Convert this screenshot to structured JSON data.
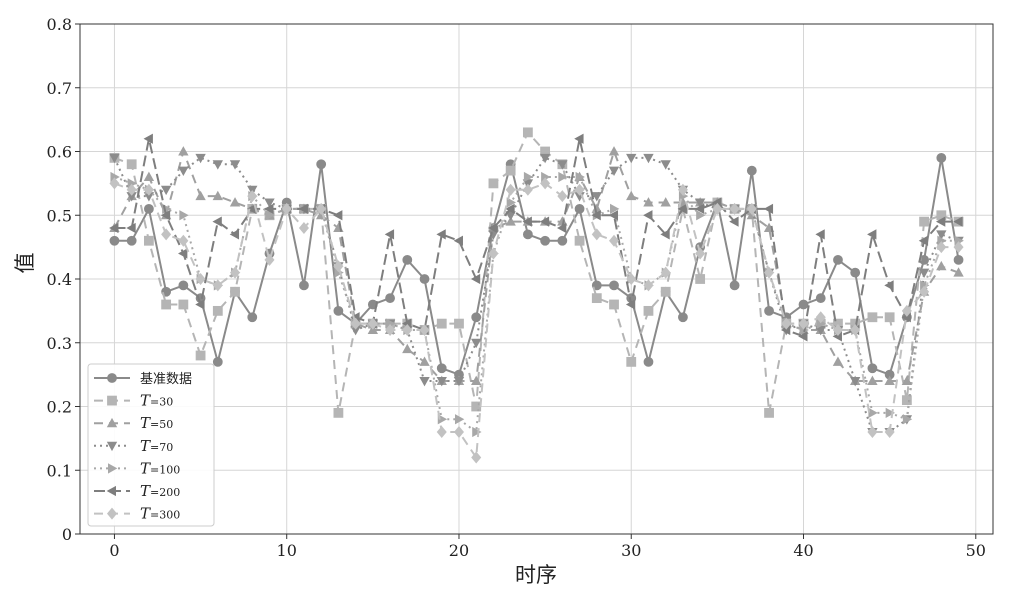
{
  "chart_data": {
    "type": "line",
    "xlabel": "时序",
    "ylabel": "值",
    "xlim": [
      -2,
      51
    ],
    "ylim": [
      0,
      0.8
    ],
    "xticks": [
      0,
      10,
      20,
      30,
      40,
      50
    ],
    "yticks": [
      0,
      0.1,
      0.2,
      0.3,
      0.4,
      0.5,
      0.6,
      0.7,
      0.8
    ],
    "ytick_labels": [
      "0",
      "0.1",
      "0.2",
      "0.3",
      "0.4",
      "0.5",
      "0.6",
      "0.7",
      "0.8"
    ],
    "grid": true,
    "legend_position": "bottom-left",
    "x": [
      0,
      1,
      2,
      3,
      4,
      5,
      6,
      7,
      8,
      9,
      10,
      11,
      12,
      13,
      14,
      15,
      16,
      17,
      18,
      19,
      20,
      21,
      22,
      23,
      24,
      25,
      26,
      27,
      28,
      29,
      30,
      31,
      32,
      33,
      34,
      35,
      36,
      37,
      38,
      39,
      40,
      41,
      42,
      43,
      44,
      45,
      46,
      47,
      48,
      49
    ],
    "series": [
      {
        "name": "基准数据",
        "color": "#8a8a8a",
        "dash": "solid",
        "marker": "circle",
        "values": [
          0.46,
          0.46,
          0.51,
          0.38,
          0.39,
          0.37,
          0.27,
          0.38,
          0.34,
          0.44,
          0.52,
          0.39,
          0.58,
          0.35,
          0.33,
          0.36,
          0.37,
          0.43,
          0.4,
          0.26,
          0.25,
          0.34,
          0.48,
          0.58,
          0.47,
          0.46,
          0.46,
          0.51,
          0.39,
          0.39,
          0.37,
          0.27,
          0.38,
          0.34,
          0.45,
          0.52,
          0.39,
          0.57,
          0.35,
          0.34,
          0.36,
          0.37,
          0.43,
          0.41,
          0.26,
          0.25,
          0.34,
          0.43,
          0.59,
          0.43
        ]
      },
      {
        "name": "T=30",
        "name_italic": "T",
        "name_rest": "=30",
        "color": "#b5b5b5",
        "dash": "9,6",
        "marker": "square",
        "values": [
          0.59,
          0.58,
          0.46,
          0.36,
          0.36,
          0.28,
          0.35,
          0.38,
          0.51,
          0.5,
          0.51,
          0.51,
          0.51,
          0.19,
          0.33,
          0.33,
          0.33,
          0.33,
          0.32,
          0.33,
          0.33,
          0.2,
          0.55,
          0.57,
          0.63,
          0.6,
          0.58,
          0.46,
          0.37,
          0.36,
          0.27,
          0.35,
          0.38,
          0.51,
          0.4,
          0.52,
          0.51,
          0.51,
          0.19,
          0.33,
          0.33,
          0.33,
          0.33,
          0.33,
          0.34,
          0.34,
          0.21,
          0.49,
          0.5,
          0.49
        ]
      },
      {
        "name": "T=50",
        "name_italic": "T",
        "name_rest": "=50",
        "color": "#a0a0a0",
        "dash": "9,6",
        "marker": "triangle-up",
        "values": [
          0.48,
          0.53,
          0.56,
          0.5,
          0.6,
          0.53,
          0.53,
          0.52,
          0.51,
          0.5,
          0.51,
          0.51,
          0.5,
          0.48,
          0.33,
          0.32,
          0.32,
          0.29,
          0.27,
          0.24,
          0.24,
          0.24,
          0.48,
          0.49,
          0.49,
          0.49,
          0.49,
          0.56,
          0.51,
          0.6,
          0.53,
          0.52,
          0.52,
          0.52,
          0.52,
          0.52,
          0.51,
          0.5,
          0.48,
          0.33,
          0.32,
          0.32,
          0.27,
          0.24,
          0.24,
          0.24,
          0.24,
          0.38,
          0.42,
          0.41
        ]
      },
      {
        "name": "T=70",
        "name_italic": "T",
        "name_rest": "=70",
        "color": "#8c8c8c",
        "dash": "2,4",
        "marker": "triangle-down",
        "values": [
          0.59,
          0.53,
          0.53,
          0.54,
          0.57,
          0.59,
          0.58,
          0.58,
          0.54,
          0.52,
          0.51,
          0.51,
          0.51,
          0.42,
          0.32,
          0.33,
          0.33,
          0.32,
          0.24,
          0.24,
          0.24,
          0.3,
          0.47,
          0.5,
          0.55,
          0.59,
          0.58,
          0.53,
          0.53,
          0.57,
          0.59,
          0.59,
          0.58,
          0.54,
          0.52,
          0.51,
          0.51,
          0.51,
          0.41,
          0.32,
          0.33,
          0.32,
          0.32,
          0.24,
          0.16,
          0.16,
          0.18,
          0.41,
          0.47,
          0.46
        ]
      },
      {
        "name": "T=100",
        "name_italic": "T",
        "name_rest": "=100",
        "color": "#a8a8a8",
        "dash": "2,4",
        "marker": "triangle-right",
        "values": [
          0.56,
          0.55,
          0.54,
          0.51,
          0.5,
          0.4,
          0.39,
          0.41,
          0.53,
          0.5,
          0.51,
          0.51,
          0.51,
          0.41,
          0.33,
          0.33,
          0.33,
          0.32,
          0.32,
          0.18,
          0.18,
          0.16,
          0.44,
          0.52,
          0.56,
          0.56,
          0.56,
          0.56,
          0.5,
          0.51,
          0.4,
          0.39,
          0.41,
          0.53,
          0.5,
          0.51,
          0.51,
          0.51,
          0.41,
          0.33,
          0.32,
          0.33,
          0.32,
          0.32,
          0.19,
          0.19,
          0.18,
          0.39,
          0.46,
          0.46
        ]
      },
      {
        "name": "T=200",
        "name_italic": "T",
        "name_rest": "=200",
        "color": "#7e7e7e",
        "dash": "11,5",
        "marker": "triangle-left",
        "values": [
          0.48,
          0.48,
          0.62,
          0.5,
          0.44,
          0.36,
          0.49,
          0.47,
          0.51,
          0.51,
          0.51,
          0.51,
          0.51,
          0.5,
          0.34,
          0.33,
          0.47,
          0.33,
          0.32,
          0.47,
          0.46,
          0.4,
          0.48,
          0.51,
          0.49,
          0.49,
          0.48,
          0.62,
          0.5,
          0.5,
          0.36,
          0.5,
          0.47,
          0.51,
          0.51,
          0.52,
          0.49,
          0.51,
          0.51,
          0.32,
          0.31,
          0.47,
          0.31,
          0.32,
          0.47,
          0.39,
          0.34,
          0.46,
          0.49,
          0.49
        ]
      },
      {
        "name": "T=300",
        "name_italic": "T",
        "name_rest": "=300",
        "color": "#c2c2c2",
        "dash": "9,6",
        "marker": "diamond",
        "values": [
          0.55,
          0.54,
          0.54,
          0.47,
          0.46,
          0.4,
          0.39,
          0.41,
          0.53,
          0.43,
          0.51,
          0.48,
          0.51,
          0.42,
          0.33,
          0.33,
          0.32,
          0.32,
          0.32,
          0.16,
          0.16,
          0.12,
          0.44,
          0.54,
          0.54,
          0.55,
          0.53,
          0.54,
          0.47,
          0.46,
          0.4,
          0.39,
          0.41,
          0.54,
          0.44,
          0.51,
          0.51,
          0.51,
          0.41,
          0.33,
          0.33,
          0.34,
          0.32,
          0.32,
          0.16,
          0.16,
          0.35,
          0.38,
          0.45,
          0.45
        ]
      }
    ]
  }
}
